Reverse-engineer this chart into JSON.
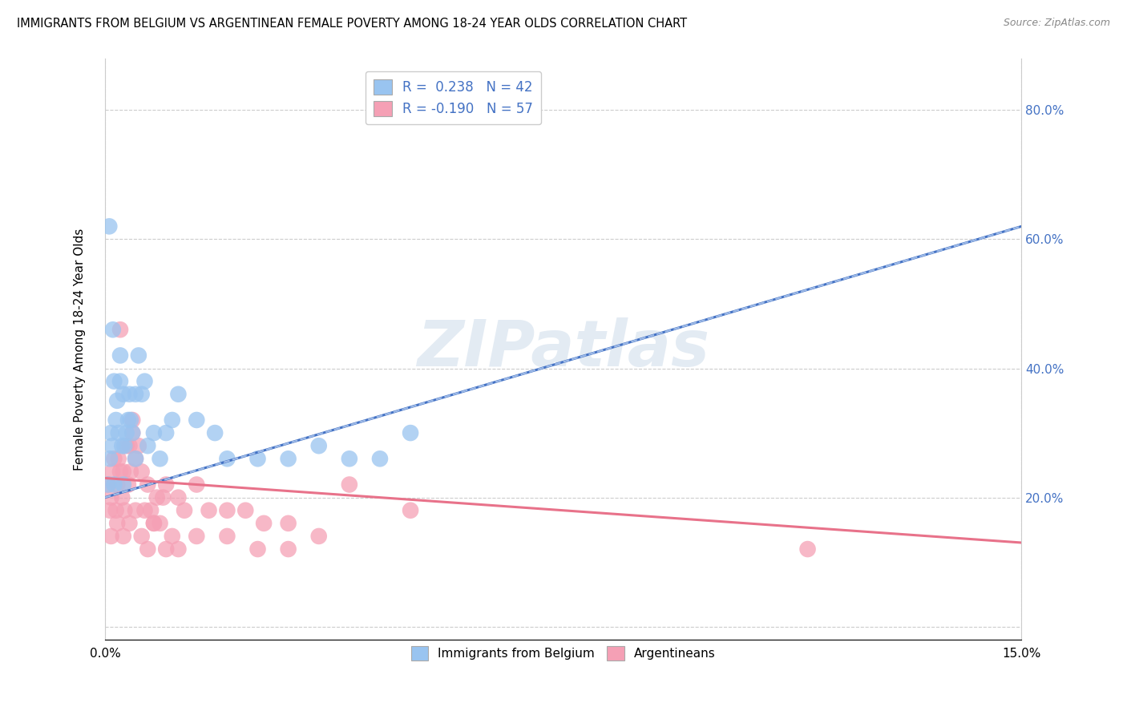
{
  "title": "IMMIGRANTS FROM BELGIUM VS ARGENTINEAN FEMALE POVERTY AMONG 18-24 YEAR OLDS CORRELATION CHART",
  "source": "Source: ZipAtlas.com",
  "ylabel": "Female Poverty Among 18-24 Year Olds",
  "xlim": [
    0.0,
    15.0
  ],
  "ylim": [
    -2.0,
    88.0
  ],
  "x_ticks": [
    0.0,
    15.0
  ],
  "x_tick_labels": [
    "0.0%",
    "15.0%"
  ],
  "y_ticks": [
    0.0,
    20.0,
    40.0,
    60.0,
    80.0
  ],
  "y_tick_labels_right": [
    "",
    "20.0%",
    "40.0%",
    "60.0%",
    "80.0%"
  ],
  "legend_label1": "R =  0.238   N = 42",
  "legend_label2": "R = -0.190   N = 57",
  "legend_label_blue": "Immigrants from Belgium",
  "legend_label_pink": "Argentineans",
  "color_blue": "#99c4f0",
  "color_pink": "#f5a0b5",
  "color_blue_line": "#4472c4",
  "color_pink_line": "#e8728a",
  "color_blue_trend_dashed": "#a0bce8",
  "watermark": "ZIPatlas",
  "blue_scatter_x": [
    0.05,
    0.08,
    0.1,
    0.12,
    0.15,
    0.15,
    0.18,
    0.2,
    0.22,
    0.25,
    0.25,
    0.28,
    0.3,
    0.3,
    0.32,
    0.35,
    0.38,
    0.4,
    0.42,
    0.45,
    0.5,
    0.5,
    0.55,
    0.6,
    0.65,
    0.7,
    0.8,
    0.9,
    1.0,
    1.1,
    1.2,
    1.5,
    1.8,
    2.0,
    2.5,
    3.0,
    3.5,
    4.0,
    4.5,
    5.0,
    0.07,
    0.13
  ],
  "blue_scatter_y": [
    22.0,
    26.0,
    30.0,
    28.0,
    38.0,
    22.0,
    32.0,
    35.0,
    30.0,
    38.0,
    42.0,
    28.0,
    36.0,
    22.0,
    28.0,
    30.0,
    32.0,
    36.0,
    32.0,
    30.0,
    26.0,
    36.0,
    42.0,
    36.0,
    38.0,
    28.0,
    30.0,
    26.0,
    30.0,
    32.0,
    36.0,
    32.0,
    30.0,
    26.0,
    26.0,
    26.0,
    28.0,
    26.0,
    26.0,
    30.0,
    62.0,
    46.0
  ],
  "pink_scatter_x": [
    0.05,
    0.08,
    0.1,
    0.12,
    0.15,
    0.18,
    0.2,
    0.22,
    0.25,
    0.28,
    0.3,
    0.32,
    0.35,
    0.38,
    0.4,
    0.42,
    0.45,
    0.5,
    0.55,
    0.6,
    0.65,
    0.7,
    0.75,
    0.8,
    0.85,
    0.9,
    0.95,
    1.0,
    1.1,
    1.2,
    1.3,
    1.5,
    1.7,
    2.0,
    2.3,
    2.6,
    3.0,
    3.5,
    4.0,
    5.0,
    0.1,
    0.2,
    0.3,
    0.4,
    0.5,
    0.6,
    0.7,
    0.8,
    1.0,
    1.2,
    1.5,
    2.0,
    2.5,
    3.0,
    11.5,
    0.25,
    0.45
  ],
  "pink_scatter_y": [
    22.0,
    18.0,
    20.0,
    24.0,
    26.0,
    18.0,
    22.0,
    26.0,
    24.0,
    20.0,
    24.0,
    18.0,
    28.0,
    22.0,
    28.0,
    24.0,
    30.0,
    26.0,
    28.0,
    24.0,
    18.0,
    22.0,
    18.0,
    16.0,
    20.0,
    16.0,
    20.0,
    22.0,
    14.0,
    20.0,
    18.0,
    22.0,
    18.0,
    18.0,
    18.0,
    16.0,
    16.0,
    14.0,
    22.0,
    18.0,
    14.0,
    16.0,
    14.0,
    16.0,
    18.0,
    14.0,
    12.0,
    16.0,
    12.0,
    12.0,
    14.0,
    14.0,
    12.0,
    12.0,
    12.0,
    46.0,
    32.0
  ],
  "blue_trend_x": [
    0.0,
    15.0
  ],
  "blue_trend_y": [
    20.0,
    62.0
  ],
  "pink_trend_x": [
    0.0,
    15.0
  ],
  "pink_trend_y": [
    23.0,
    13.0
  ],
  "background_color": "#ffffff",
  "grid_color": "#cccccc",
  "tick_color_blue": "#4472c4"
}
